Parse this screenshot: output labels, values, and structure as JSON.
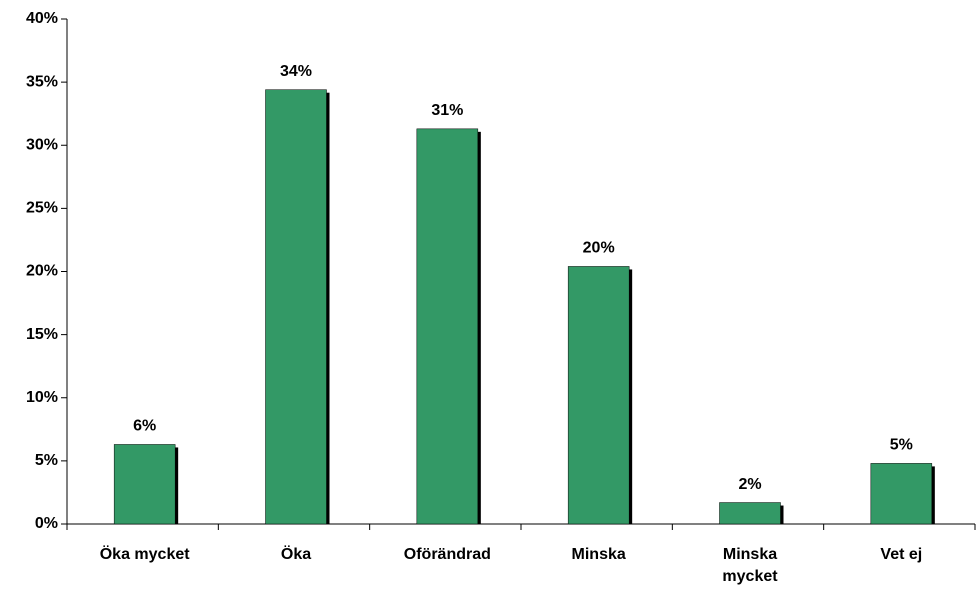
{
  "chart_data": {
    "type": "bar",
    "categories": [
      "Öka mycket",
      "Öka",
      "Oförändrad",
      "Minska",
      "Minska mycket",
      "Vet ej"
    ],
    "values": [
      6.3,
      34.4,
      31.3,
      20.4,
      1.7,
      4.8
    ],
    "value_labels": [
      "6%",
      "34%",
      "31%",
      "20%",
      "2%",
      "5%"
    ],
    "color": "#339966",
    "ylim": [
      0,
      40
    ],
    "yticks": [
      {
        "value": 0,
        "label": "0%"
      },
      {
        "value": 5,
        "label": "5%"
      },
      {
        "value": 10,
        "label": "10%"
      },
      {
        "value": 15,
        "label": "15%"
      },
      {
        "value": 20,
        "label": "20%"
      },
      {
        "value": 25,
        "label": "25%"
      },
      {
        "value": 30,
        "label": "30%"
      },
      {
        "value": 35,
        "label": "35%"
      },
      {
        "value": 40,
        "label": "40%"
      }
    ],
    "grid": false
  }
}
